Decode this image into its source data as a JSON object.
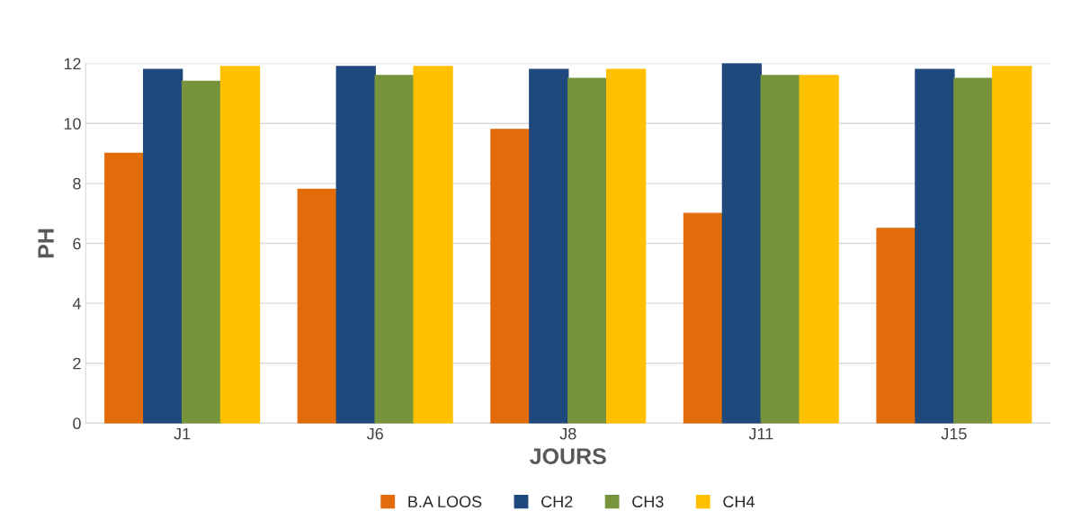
{
  "chart_data": {
    "type": "bar",
    "xlabel": "JOURS",
    "ylabel": "PH",
    "categories": [
      "J1",
      "J6",
      "J8",
      "J11",
      "J15"
    ],
    "series": [
      {
        "name": "B.A LOOS",
        "color": "#e36c0a",
        "values": [
          9.0,
          7.8,
          9.8,
          7.0,
          6.5
        ]
      },
      {
        "name": "CH2",
        "color": "#1f497d",
        "values": [
          11.8,
          11.9,
          11.8,
          12.0,
          11.8
        ]
      },
      {
        "name": "CH3",
        "color": "#77933c",
        "values": [
          11.4,
          11.6,
          11.5,
          11.6,
          11.5
        ]
      },
      {
        "name": "CH4",
        "color": "#ffc000",
        "values": [
          11.9,
          11.9,
          11.8,
          11.6,
          11.9
        ]
      }
    ],
    "ylim": [
      0,
      12
    ],
    "yticks": [
      0,
      2,
      4,
      6,
      8,
      10,
      12
    ],
    "grid": "y",
    "legend": "bottom"
  }
}
